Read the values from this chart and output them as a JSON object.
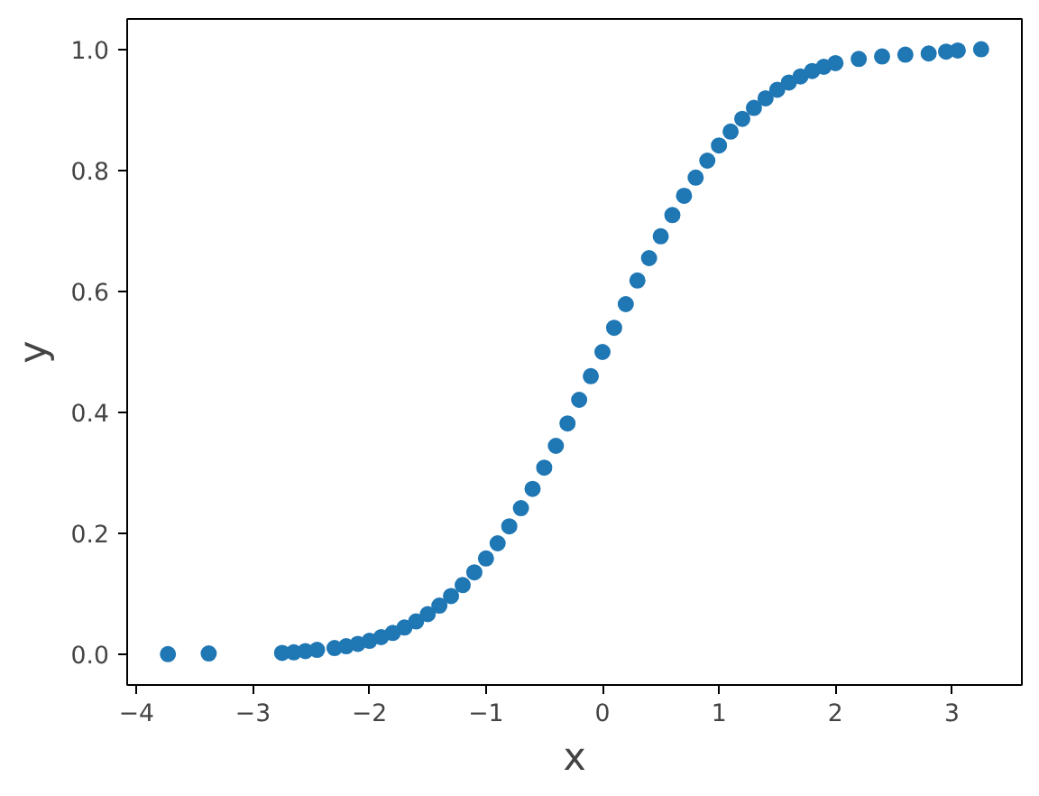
{
  "chart_data": {
    "type": "scatter",
    "xlabel": "x",
    "ylabel": "y",
    "color": "#1f77b4",
    "marker": "circle",
    "grid": false,
    "x": [
      -3.73,
      -3.38,
      -2.75,
      -2.65,
      -2.55,
      -2.45,
      -2.3,
      -2.2,
      -2.1,
      -2.0,
      -1.9,
      -1.8,
      -1.7,
      -1.6,
      -1.5,
      -1.4,
      -1.3,
      -1.2,
      -1.1,
      -1.0,
      -0.9,
      -0.8,
      -0.7,
      -0.6,
      -0.5,
      -0.4,
      -0.3,
      -0.2,
      -0.1,
      0.0,
      0.1,
      0.2,
      0.3,
      0.4,
      0.5,
      0.6,
      0.7,
      0.8,
      0.9,
      1.0,
      1.1,
      1.2,
      1.3,
      1.4,
      1.5,
      1.6,
      1.7,
      1.8,
      1.9,
      2.0,
      2.2,
      2.4,
      2.6,
      2.8,
      2.95,
      3.05,
      3.25
    ],
    "values": [
      0.001,
      0.002,
      0.003,
      0.004,
      0.006,
      0.008,
      0.011,
      0.014,
      0.018,
      0.023,
      0.029,
      0.036,
      0.045,
      0.055,
      0.067,
      0.081,
      0.097,
      0.115,
      0.136,
      0.159,
      0.184,
      0.212,
      0.242,
      0.274,
      0.309,
      0.345,
      0.382,
      0.421,
      0.46,
      0.5,
      0.54,
      0.579,
      0.618,
      0.655,
      0.691,
      0.726,
      0.758,
      0.788,
      0.816,
      0.841,
      0.864,
      0.885,
      0.903,
      0.919,
      0.933,
      0.945,
      0.955,
      0.964,
      0.971,
      0.977,
      0.984,
      0.988,
      0.991,
      0.993,
      0.996,
      0.998,
      1.0
    ],
    "xlim": [
      -4.08,
      3.6
    ],
    "ylim": [
      -0.05,
      1.05
    ],
    "xticks": [
      -4,
      -3,
      -2,
      -1,
      0,
      1,
      2,
      3
    ],
    "yticks": [
      {
        "value": 0,
        "label": "0.0"
      },
      {
        "value": 0.2,
        "label": "0.2"
      },
      {
        "value": 0.4,
        "label": "0.4"
      },
      {
        "value": 0.6,
        "label": "0.6"
      },
      {
        "value": 0.8,
        "label": "0.8"
      },
      {
        "value": 1,
        "label": "1.0"
      }
    ]
  }
}
